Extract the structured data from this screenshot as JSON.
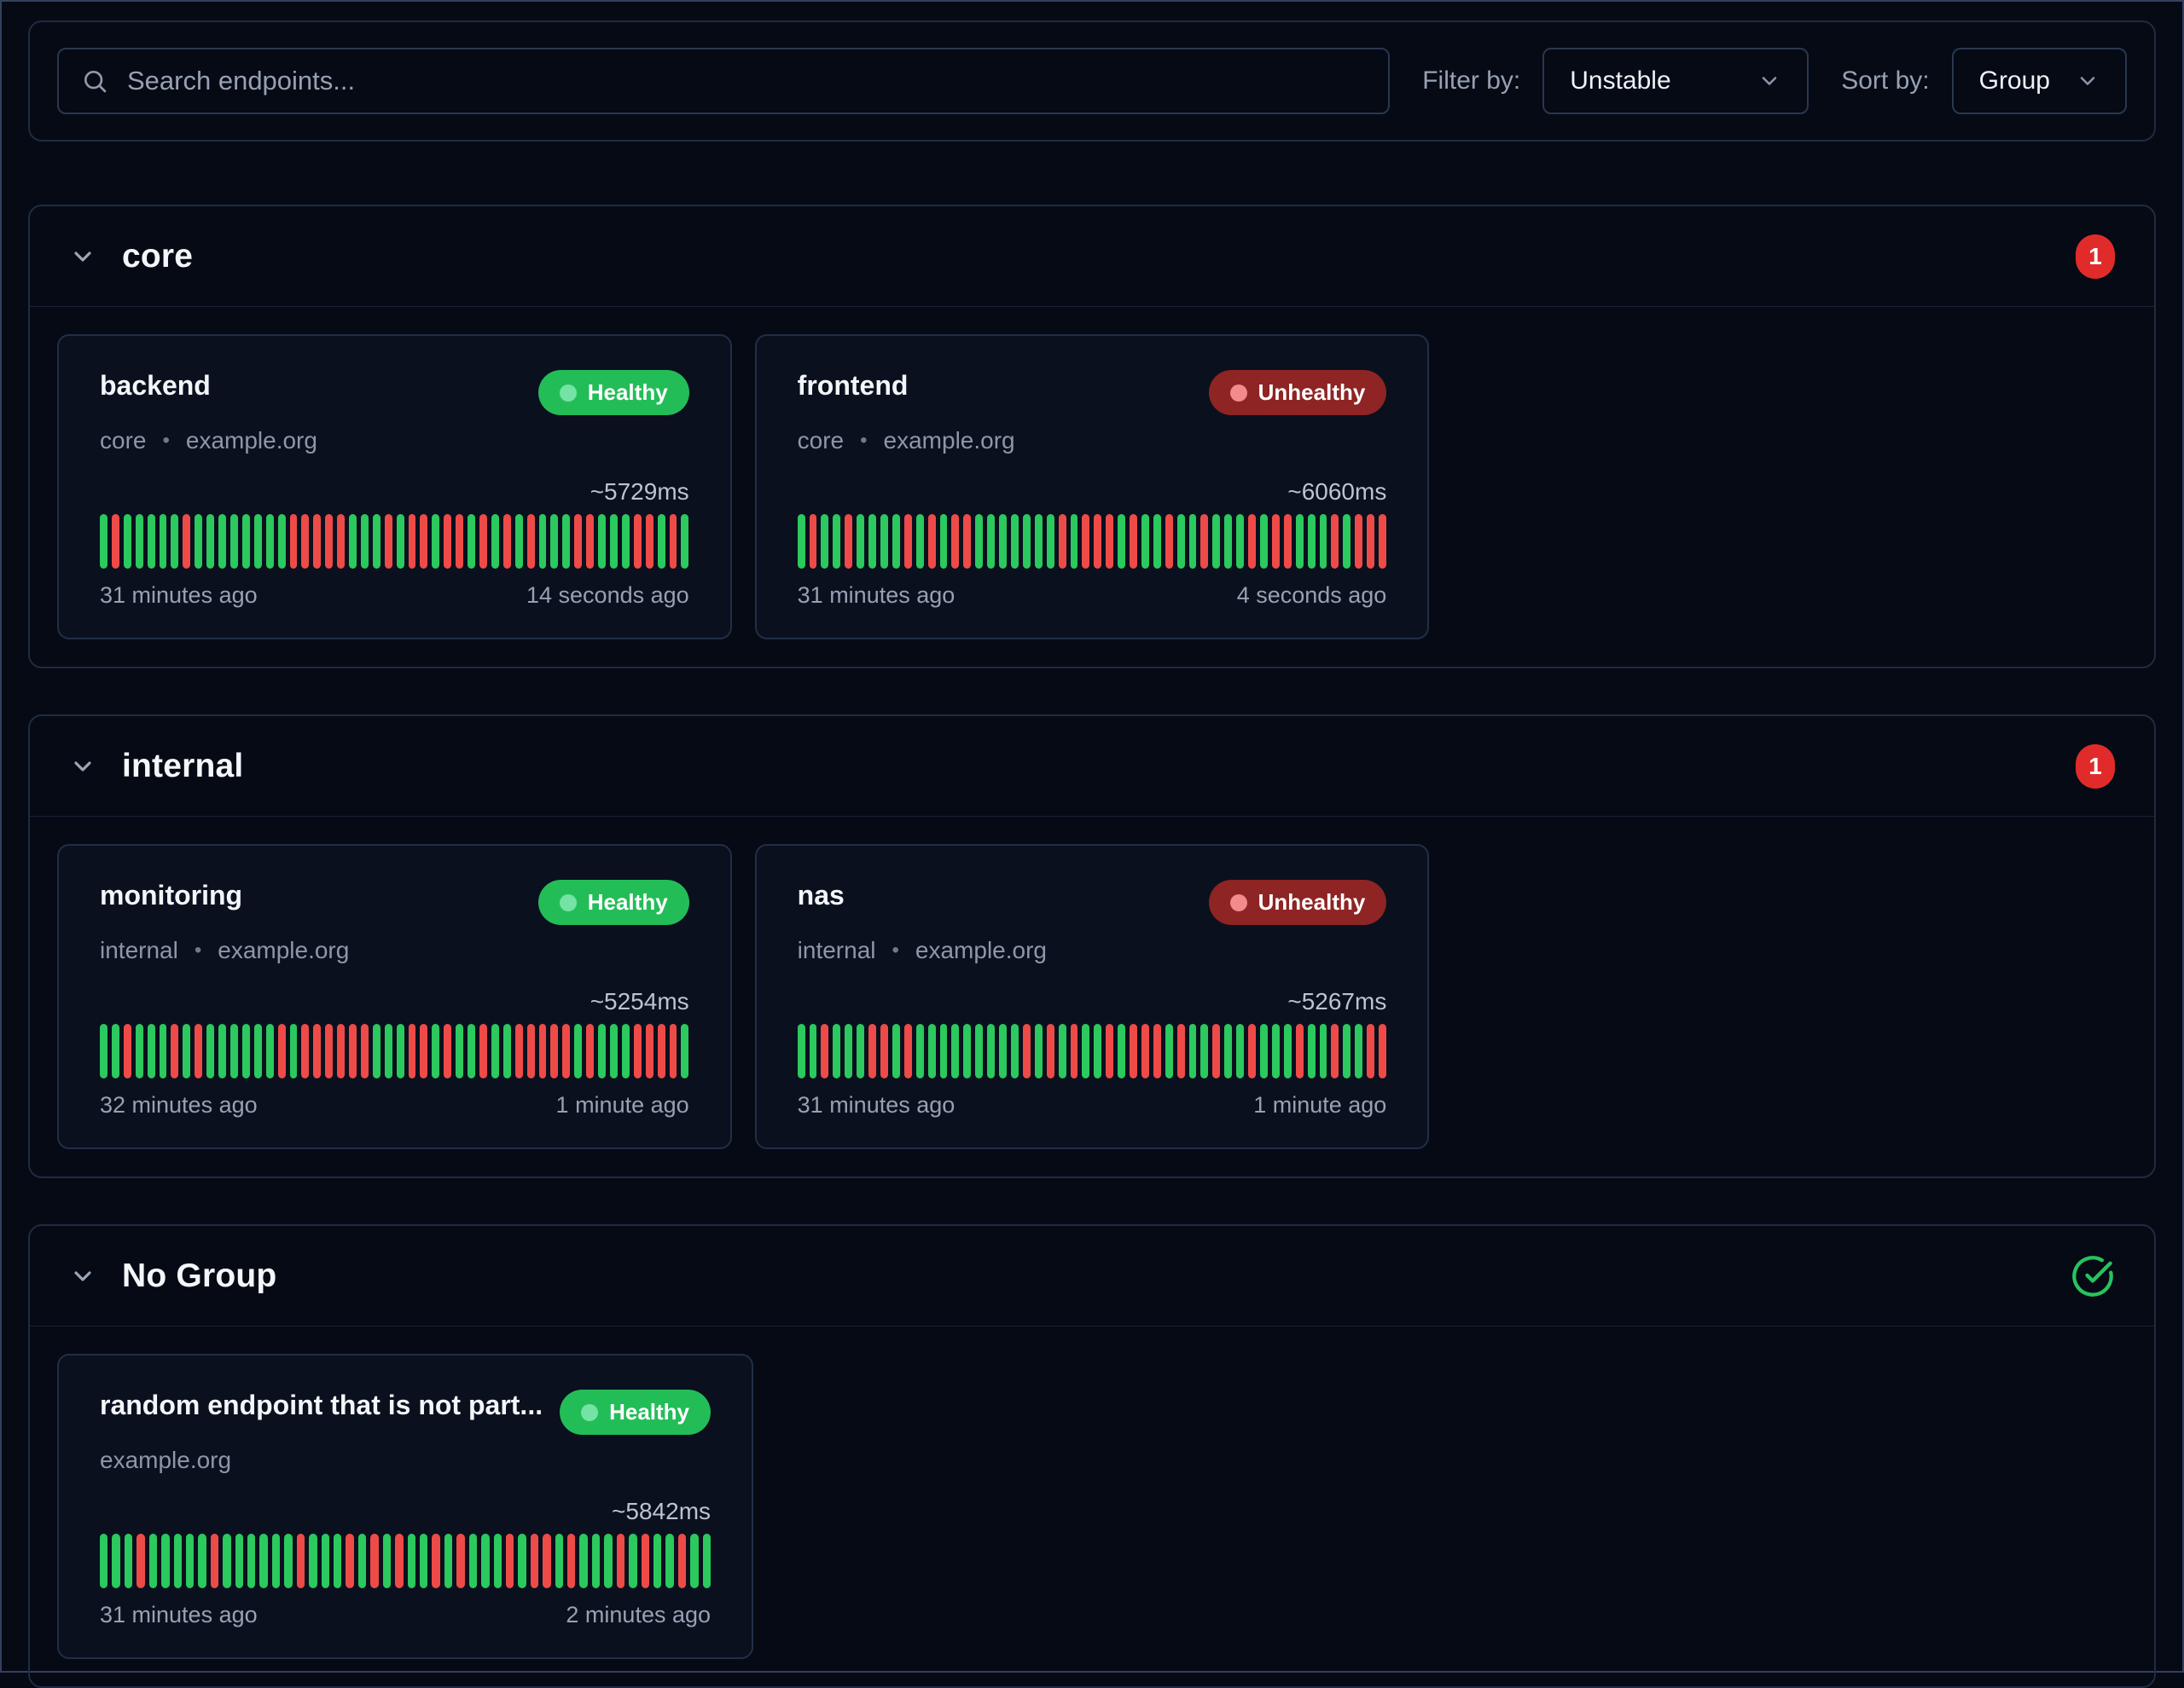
{
  "topbar": {
    "search_placeholder": "Search endpoints...",
    "filter_label": "Filter by:",
    "filter_value": "Unstable",
    "sort_label": "Sort by:",
    "sort_value": "Group"
  },
  "colors": {
    "success_green": "#2bc95e",
    "failure_red": "#ee4b48",
    "healthy_badge_bg": "#23bd58",
    "unhealthy_badge_bg": "#8e2424",
    "count_badge_red": "#e12b2b",
    "group_ok_green": "#27c35f"
  },
  "icons": {
    "search": "search-icon",
    "dropdown_chevron": "chevron-down-icon",
    "group_chevron": "chevron-down-icon",
    "group_ok": "check-circle-icon"
  },
  "groups": [
    {
      "name": "core",
      "unhealthy_count": "1",
      "endpoints": [
        {
          "name": "backend",
          "group": "core",
          "host": "example.org",
          "separator": "•",
          "status": "Healthy",
          "latency": "~5729ms",
          "time_start": "31 minutes ago",
          "time_end": "14 seconds ago",
          "pattern": "grgggggrggggggggrrrrrgggrgrrgrrgrgrgrgggrrgggrrgrg"
        },
        {
          "name": "frontend",
          "group": "core",
          "host": "example.org",
          "separator": "•",
          "status": "Unhealthy",
          "latency": "~6060ms",
          "time_start": "31 minutes ago",
          "time_end": "4 seconds ago",
          "pattern": "grggrggggrgrgrrgggggggrgrrrgrggrggrgggrgrrgggrgrrr"
        }
      ]
    },
    {
      "name": "internal",
      "unhealthy_count": "1",
      "endpoints": [
        {
          "name": "monitoring",
          "group": "internal",
          "host": "example.org",
          "separator": "•",
          "status": "Healthy",
          "latency": "~5254ms",
          "time_start": "32 minutes ago",
          "time_end": "1 minute ago",
          "pattern": "ggrgggrgrggggggrgrrrrrrgggrrgrggrggrrrrrgrgggrrrrg"
        },
        {
          "name": "nas",
          "group": "internal",
          "host": "example.org",
          "separator": "•",
          "status": "Unhealthy",
          "latency": "~5267ms",
          "time_start": "31 minutes ago",
          "time_end": "1 minute ago",
          "pattern": "ggrgggrrgrgggggggggrgrgrggrgrrrgrggrggrgggrggrggrr"
        }
      ]
    },
    {
      "name": "No Group",
      "all_healthy": true,
      "endpoints": [
        {
          "name": "random endpoint that is not part...",
          "group": "",
          "host": "example.org",
          "separator": "",
          "status": "Healthy",
          "latency": "~5842ms",
          "time_start": "31 minutes ago",
          "time_end": "2 minutes ago",
          "pattern": "gggrgggggrggggggrgggrgrgrggrgrgggrgrrgrgggrgrggrgg"
        }
      ]
    }
  ]
}
